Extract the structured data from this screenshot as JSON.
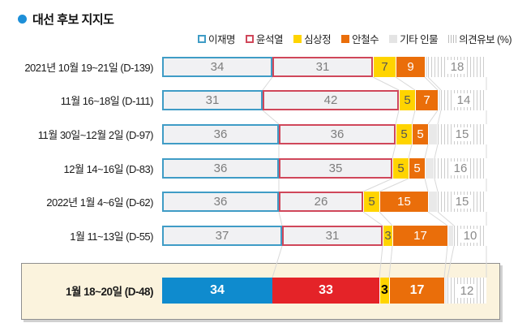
{
  "title": "대선 후보 지지도",
  "colors": {
    "bullet_blue": "#1d8fd8",
    "lee_blue": "#0f8bce",
    "lee_blue_outline": "#3f9cc6",
    "yoon_red": "#e42328",
    "yoon_red_outline": "#d0475a",
    "sim_yellow": "#ffd400",
    "ahn_orange": "#ea6e0a",
    "highlight_bg": "#fbf3dd"
  },
  "legend": [
    {
      "label": "이재명",
      "swatch": "outline-blue"
    },
    {
      "label": "윤석열",
      "swatch": "outline-red"
    },
    {
      "label": "심상정",
      "swatch": "fill-yellow"
    },
    {
      "label": "안철수",
      "swatch": "fill-orange"
    },
    {
      "label": "기타 인물",
      "swatch": "fill-lightgray"
    },
    {
      "label": "의견유보 (%)",
      "swatch": "stripes"
    }
  ],
  "chart_data": {
    "type": "bar",
    "orientation": "horizontal",
    "stacked": true,
    "unit": "%",
    "total": 100,
    "series": [
      "이재명",
      "윤석열",
      "심상정",
      "안철수",
      "기타 인물",
      "의견유보"
    ],
    "rows": [
      {
        "label": "2021년 10월 19~21일 (D-139)",
        "values": [
          34,
          31,
          7,
          9,
          null,
          18
        ],
        "highlight": false
      },
      {
        "label": "11월 16~18일 (D-111)",
        "values": [
          31,
          42,
          5,
          7,
          null,
          14
        ],
        "highlight": false
      },
      {
        "label": "11월 30일~12월 2일 (D-97)",
        "values": [
          36,
          36,
          5,
          5,
          null,
          15
        ],
        "highlight": false
      },
      {
        "label": "12월 14~16일 (D-83)",
        "values": [
          36,
          35,
          5,
          5,
          null,
          16
        ],
        "highlight": false
      },
      {
        "label": "2022년 1월 4~6일 (D-62)",
        "values": [
          36,
          26,
          5,
          15,
          null,
          15
        ],
        "highlight": false
      },
      {
        "label": "1월 11~13일 (D-55)",
        "values": [
          37,
          31,
          3,
          17,
          null,
          10
        ],
        "highlight": false
      },
      {
        "label": "1월 18~20일 (D-48)",
        "values": [
          34,
          33,
          3,
          17,
          null,
          12
        ],
        "highlight": true
      }
    ],
    "legend_position": "top-right",
    "notes": "기타 인물 segment is drawn unlabeled as remainder to 100%"
  }
}
